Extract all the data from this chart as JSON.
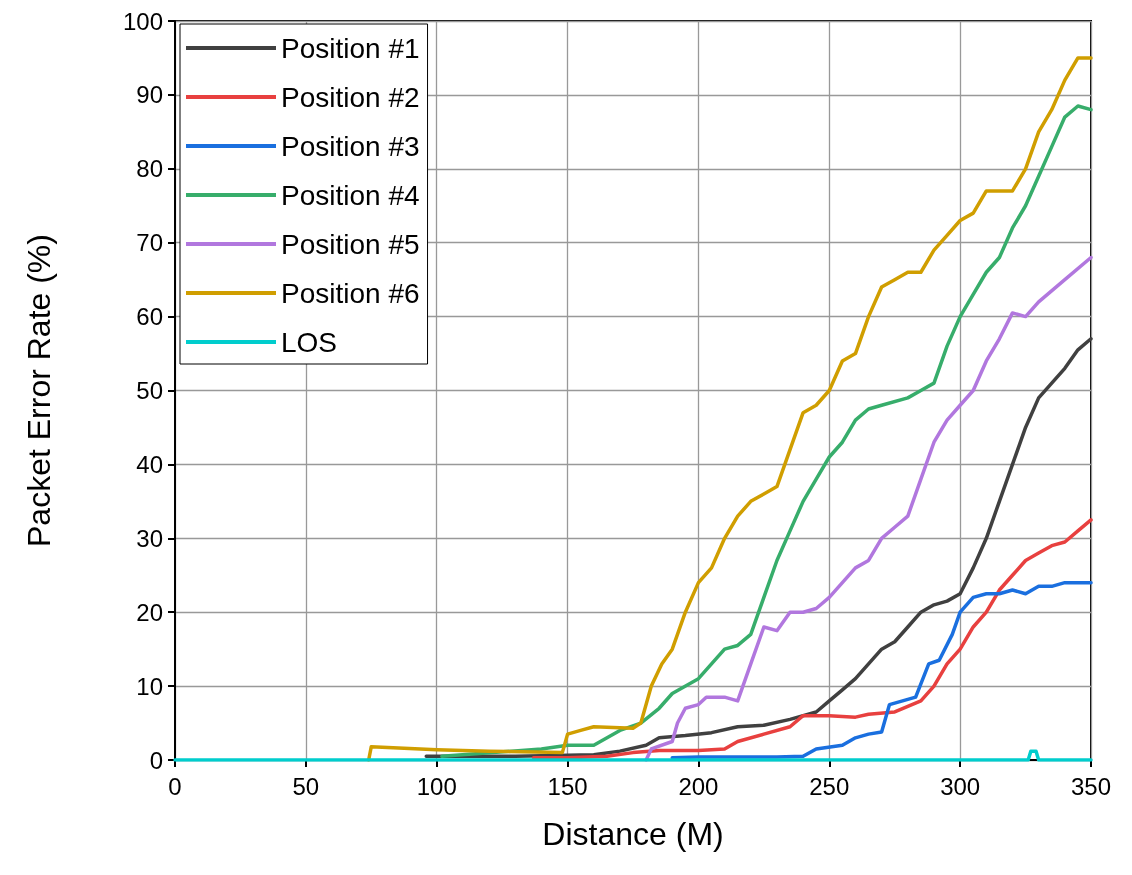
{
  "chart_data": {
    "type": "line",
    "xlabel": "Distance (M)",
    "ylabel": "Packet Error Rate (%)",
    "xlim": [
      0,
      350
    ],
    "xticks": [
      0,
      50,
      100,
      150,
      200,
      250,
      300,
      350
    ],
    "ylim": [
      0,
      100
    ],
    "yticks": [
      0,
      10,
      20,
      30,
      40,
      50,
      60,
      70,
      80,
      90,
      100
    ],
    "grid": true,
    "legend": "top left",
    "marker": "none",
    "line_style": "solid",
    "series": [
      {
        "name": "Position #1",
        "color": "#404040",
        "x": [
          96,
          130,
          160,
          170,
          180,
          185,
          195,
          205,
          215,
          225,
          235,
          245,
          250,
          255,
          260,
          265,
          270,
          275,
          280,
          285,
          290,
          295,
          300,
          305,
          310,
          315,
          320,
          325,
          330,
          335,
          340,
          345,
          350
        ],
        "values": [
          0.5,
          0.5,
          0.7,
          1.2,
          2,
          3,
          3.3,
          3.7,
          4.5,
          4.7,
          5.5,
          6.5,
          8,
          9.5,
          11,
          13,
          15,
          16,
          18,
          20,
          21,
          21.5,
          22.5,
          26,
          30,
          35,
          40,
          45,
          49,
          51,
          53,
          55.5,
          57
        ]
      },
      {
        "name": "Position #2",
        "color": "#e8403f",
        "x": [
          137,
          150,
          165,
          175,
          185,
          200,
          210,
          215,
          225,
          235,
          240,
          250,
          260,
          265,
          275,
          285,
          290,
          295,
          300,
          305,
          310,
          315,
          320,
          325,
          330,
          335,
          340,
          345,
          350
        ],
        "values": [
          0.3,
          0.3,
          0.5,
          1,
          1.3,
          1.3,
          1.5,
          2.5,
          3.5,
          4.5,
          6,
          6,
          5.8,
          6.2,
          6.5,
          8,
          10,
          13,
          15,
          18,
          20,
          23,
          25,
          27,
          28,
          29,
          29.5,
          31,
          32.5
        ]
      },
      {
        "name": "Position #3",
        "color": "#1a6fdf",
        "x": [
          190,
          200,
          230,
          240,
          245,
          255,
          260,
          265,
          270,
          273,
          278,
          283,
          288,
          292,
          297,
          300,
          305,
          310,
          315,
          320,
          325,
          330,
          335,
          340,
          350
        ],
        "values": [
          0.3,
          0.4,
          0.4,
          0.5,
          1.5,
          2,
          3,
          3.5,
          3.8,
          7.5,
          8,
          8.5,
          13,
          13.5,
          17,
          20,
          22,
          22.5,
          22.5,
          23,
          22.5,
          23.5,
          23.5,
          24,
          24
        ]
      },
      {
        "name": "Position #4",
        "color": "#37ad6b",
        "x": [
          102,
          140,
          150,
          160,
          170,
          178,
          185,
          190,
          200,
          205,
          210,
          215,
          220,
          225,
          230,
          235,
          240,
          245,
          250,
          255,
          260,
          265,
          270,
          280,
          285,
          290,
          295,
          300,
          305,
          310,
          315,
          320,
          325,
          330,
          335,
          340,
          345,
          350
        ],
        "values": [
          0.5,
          1.5,
          2,
          2,
          4,
          5,
          7,
          9,
          11,
          13,
          15,
          15.5,
          17,
          22,
          27,
          31,
          35,
          38,
          41,
          43,
          46,
          47.5,
          48,
          49,
          50,
          51,
          56,
          60,
          63,
          66,
          68,
          72,
          75,
          79,
          83,
          87,
          88.5,
          88
        ]
      },
      {
        "name": "Position #5",
        "color": "#b177de",
        "x": [
          180,
          182,
          190,
          192,
          195,
          200,
          203,
          210,
          215,
          220,
          225,
          230,
          235,
          240,
          245,
          250,
          255,
          260,
          265,
          270,
          275,
          280,
          285,
          290,
          295,
          300,
          305,
          310,
          315,
          320,
          325,
          330,
          340,
          350
        ],
        "values": [
          0,
          1.5,
          2.5,
          5,
          7,
          7.5,
          8.5,
          8.5,
          8,
          13,
          18,
          17.5,
          20,
          20,
          20.5,
          22,
          24,
          26,
          27,
          30,
          31.5,
          33,
          38,
          43,
          46,
          48,
          50,
          54,
          57,
          60.5,
          60,
          62,
          65,
          68
        ]
      },
      {
        "name": "Position #6",
        "color": "#d09e00",
        "x": [
          74,
          75,
          100,
          120,
          148,
          150,
          155,
          160,
          175,
          178,
          182,
          186,
          190,
          195,
          200,
          205,
          210,
          215,
          220,
          225,
          230,
          235,
          240,
          245,
          250,
          255,
          260,
          265,
          270,
          275,
          280,
          285,
          290,
          295,
          300,
          305,
          310,
          315,
          320,
          325,
          330,
          335,
          340,
          345,
          350
        ],
        "values": [
          0,
          1.8,
          1.4,
          1.2,
          1,
          3.5,
          4,
          4.5,
          4.3,
          5,
          10,
          13,
          15,
          20,
          24,
          26,
          30,
          33,
          35,
          36,
          37,
          42,
          47,
          48,
          50,
          54,
          55,
          60,
          64,
          65,
          66,
          66,
          69,
          71,
          73,
          74,
          77,
          77,
          77,
          80,
          85,
          88,
          92,
          95,
          95
        ]
      },
      {
        "name": "LOS",
        "color": "#00cdcd",
        "x": [
          0,
          326,
          327,
          329,
          330,
          350
        ],
        "values": [
          0,
          0,
          1.2,
          1.2,
          0,
          0
        ]
      }
    ]
  }
}
